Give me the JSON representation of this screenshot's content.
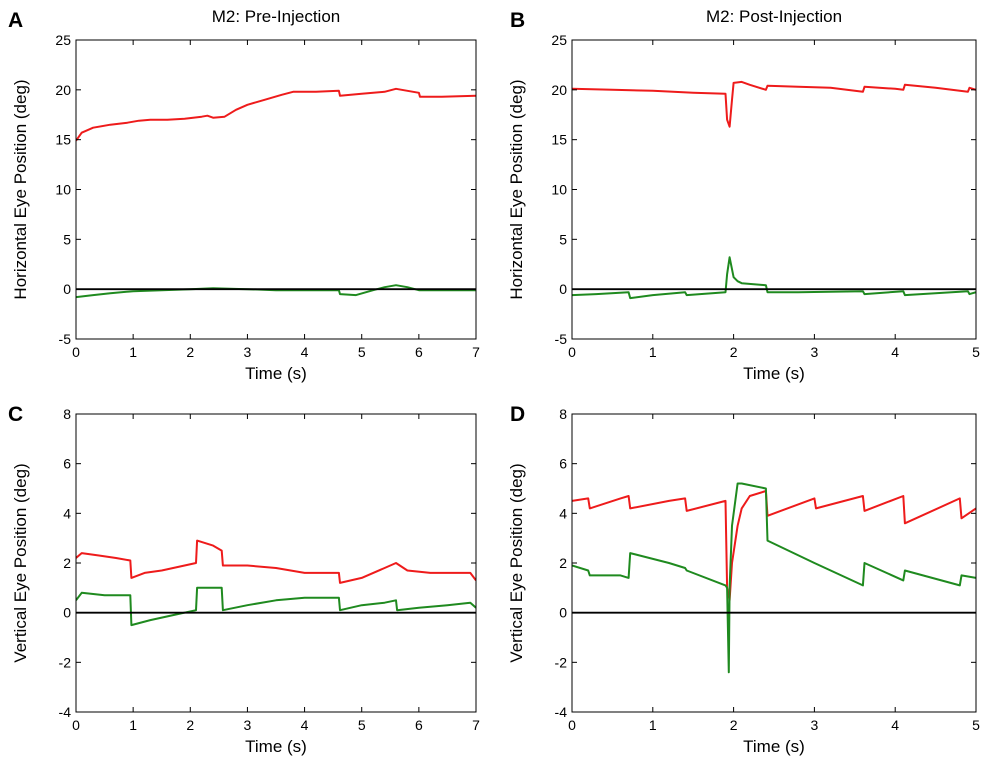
{
  "colors": {
    "red": "#ee1b1b",
    "green": "#1f8a1f",
    "black": "#000000"
  },
  "chart_data": [
    {
      "letter": "A",
      "type": "line",
      "title": "M2: Pre-Injection",
      "xlabel": "Time (s)",
      "ylabel": "Horizontal Eye Position (deg)",
      "xlim": [
        0,
        7
      ],
      "ylim": [
        -5,
        25
      ],
      "xticks": [
        0,
        1,
        2,
        3,
        4,
        5,
        6,
        7
      ],
      "yticks": [
        -5,
        0,
        5,
        10,
        15,
        20,
        25
      ],
      "grid": false,
      "series": [
        {
          "color": "red",
          "x": [
            0,
            0.1,
            0.3,
            0.6,
            0.9,
            1.1,
            1.3,
            1.6,
            1.9,
            2.2,
            2.3,
            2.4,
            2.6,
            2.8,
            3.0,
            3.3,
            3.6,
            3.8,
            4.2,
            4.6,
            4.62,
            5.0,
            5.4,
            5.6,
            5.8,
            6.0,
            6.02,
            6.4,
            7.0
          ],
          "y": [
            14.9,
            15.7,
            16.2,
            16.5,
            16.7,
            16.9,
            17.0,
            17.0,
            17.1,
            17.3,
            17.4,
            17.2,
            17.3,
            18.0,
            18.5,
            19.0,
            19.5,
            19.8,
            19.8,
            19.9,
            19.4,
            19.6,
            19.8,
            20.1,
            19.9,
            19.7,
            19.3,
            19.3,
            19.4
          ]
        },
        {
          "color": "green",
          "x": [
            0,
            0.3,
            0.6,
            1.0,
            1.5,
            2.0,
            2.4,
            3.0,
            3.5,
            4.0,
            4.6,
            4.62,
            4.9,
            5.2,
            5.4,
            5.6,
            5.8,
            6.0,
            6.5,
            7.0
          ],
          "y": [
            -0.8,
            -0.6,
            -0.4,
            -0.2,
            -0.1,
            0.0,
            0.1,
            0.0,
            -0.1,
            -0.1,
            -0.1,
            -0.5,
            -0.6,
            -0.1,
            0.2,
            0.4,
            0.2,
            -0.1,
            -0.1,
            -0.1
          ]
        },
        {
          "color": "black",
          "x": [
            0,
            7
          ],
          "y": [
            0,
            0
          ]
        }
      ]
    },
    {
      "letter": "B",
      "type": "line",
      "title": "M2: Post-Injection",
      "xlabel": "Time (s)",
      "ylabel": "Horizontal Eye Position (deg)",
      "xlim": [
        0,
        5
      ],
      "ylim": [
        -5,
        25
      ],
      "xticks": [
        0,
        1,
        2,
        3,
        4,
        5
      ],
      "yticks": [
        -5,
        0,
        5,
        10,
        15,
        20,
        25
      ],
      "grid": false,
      "series": [
        {
          "color": "red",
          "x": [
            0,
            0.5,
            1.0,
            1.5,
            1.9,
            1.92,
            1.95,
            1.98,
            2.0,
            2.1,
            2.2,
            2.4,
            2.42,
            2.8,
            3.2,
            3.6,
            3.62,
            4.0,
            4.1,
            4.12,
            4.5,
            4.8,
            4.9,
            4.92,
            5.0
          ],
          "y": [
            20.1,
            20.0,
            19.9,
            19.7,
            19.6,
            17.0,
            16.3,
            19.0,
            20.7,
            20.8,
            20.5,
            20.0,
            20.4,
            20.3,
            20.2,
            19.8,
            20.3,
            20.1,
            20.0,
            20.5,
            20.2,
            19.9,
            19.8,
            20.2,
            20.0
          ]
        },
        {
          "color": "green",
          "x": [
            0,
            0.3,
            0.7,
            0.72,
            1.0,
            1.4,
            1.42,
            1.9,
            1.92,
            1.95,
            2.0,
            2.05,
            2.1,
            2.4,
            2.42,
            2.8,
            3.6,
            3.62,
            4.1,
            4.12,
            4.9,
            4.92,
            5.0
          ],
          "y": [
            -0.6,
            -0.5,
            -0.3,
            -0.9,
            -0.6,
            -0.3,
            -0.6,
            -0.3,
            1.5,
            3.2,
            1.2,
            0.8,
            0.6,
            0.4,
            -0.3,
            -0.3,
            -0.2,
            -0.5,
            -0.2,
            -0.6,
            -0.2,
            -0.5,
            -0.3
          ]
        },
        {
          "color": "black",
          "x": [
            0,
            5
          ],
          "y": [
            0,
            0
          ]
        }
      ]
    },
    {
      "letter": "C",
      "type": "line",
      "title": "",
      "xlabel": "Time (s)",
      "ylabel": "Vertical Eye Position (deg)",
      "xlim": [
        0,
        7
      ],
      "ylim": [
        -4,
        8
      ],
      "xticks": [
        0,
        1,
        2,
        3,
        4,
        5,
        6,
        7
      ],
      "yticks": [
        -4,
        -2,
        0,
        2,
        4,
        6,
        8
      ],
      "grid": false,
      "series": [
        {
          "color": "red",
          "x": [
            0,
            0.1,
            0.4,
            0.7,
            0.95,
            0.97,
            1.2,
            1.5,
            1.9,
            2.1,
            2.12,
            2.4,
            2.55,
            2.57,
            3.0,
            3.5,
            4.0,
            4.6,
            4.62,
            5.0,
            5.4,
            5.6,
            5.8,
            6.2,
            6.9,
            7.0
          ],
          "y": [
            2.2,
            2.4,
            2.3,
            2.2,
            2.1,
            1.4,
            1.6,
            1.7,
            1.9,
            2.0,
            2.9,
            2.7,
            2.5,
            1.9,
            1.9,
            1.8,
            1.6,
            1.6,
            1.2,
            1.4,
            1.8,
            2.0,
            1.7,
            1.6,
            1.6,
            1.3
          ]
        },
        {
          "color": "green",
          "x": [
            0,
            0.1,
            0.5,
            0.95,
            0.97,
            1.3,
            1.7,
            2.1,
            2.12,
            2.55,
            2.57,
            3.0,
            3.5,
            4.0,
            4.6,
            4.62,
            5.0,
            5.4,
            5.6,
            5.62,
            6.0,
            6.5,
            6.9,
            7.0
          ],
          "y": [
            0.5,
            0.8,
            0.7,
            0.7,
            -0.5,
            -0.3,
            -0.1,
            0.1,
            1.0,
            1.0,
            0.1,
            0.3,
            0.5,
            0.6,
            0.6,
            0.1,
            0.3,
            0.4,
            0.5,
            0.1,
            0.2,
            0.3,
            0.4,
            0.2
          ]
        },
        {
          "color": "black",
          "x": [
            0,
            7
          ],
          "y": [
            0,
            0
          ]
        }
      ]
    },
    {
      "letter": "D",
      "type": "line",
      "title": "",
      "xlabel": "Time (s)",
      "ylabel": "Vertical Eye Position (deg)",
      "xlim": [
        0,
        5
      ],
      "ylim": [
        -4,
        8
      ],
      "xticks": [
        0,
        1,
        2,
        3,
        4,
        5
      ],
      "yticks": [
        -4,
        -2,
        0,
        2,
        4,
        6,
        8
      ],
      "grid": false,
      "series": [
        {
          "color": "red",
          "x": [
            0,
            0.2,
            0.22,
            0.6,
            0.7,
            0.72,
            1.2,
            1.4,
            1.42,
            1.9,
            1.92,
            1.95,
            1.98,
            2.05,
            2.1,
            2.2,
            2.4,
            2.42,
            3.0,
            3.02,
            3.6,
            3.62,
            4.1,
            4.12,
            4.8,
            4.82,
            5.0
          ],
          "y": [
            4.5,
            4.6,
            4.2,
            4.6,
            4.7,
            4.2,
            4.5,
            4.6,
            4.1,
            4.5,
            1.0,
            0.5,
            2.0,
            3.5,
            4.2,
            4.7,
            4.9,
            3.9,
            4.6,
            4.2,
            4.7,
            4.1,
            4.7,
            3.6,
            4.6,
            3.8,
            4.2
          ]
        },
        {
          "color": "green",
          "x": [
            0,
            0.2,
            0.22,
            0.6,
            0.7,
            0.72,
            1.2,
            1.4,
            1.42,
            1.9,
            1.92,
            1.94,
            1.95,
            1.98,
            2.05,
            2.1,
            2.4,
            2.42,
            3.0,
            3.6,
            3.62,
            4.1,
            4.12,
            4.8,
            4.82,
            5.0
          ],
          "y": [
            1.9,
            1.7,
            1.5,
            1.5,
            1.4,
            2.4,
            2.0,
            1.8,
            1.7,
            1.1,
            1.0,
            -2.4,
            1.0,
            3.5,
            5.2,
            5.2,
            5.0,
            2.9,
            2.0,
            1.1,
            2.0,
            1.3,
            1.7,
            1.1,
            1.5,
            1.4
          ]
        },
        {
          "color": "black",
          "x": [
            0,
            5
          ],
          "y": [
            0,
            0
          ]
        }
      ]
    }
  ]
}
